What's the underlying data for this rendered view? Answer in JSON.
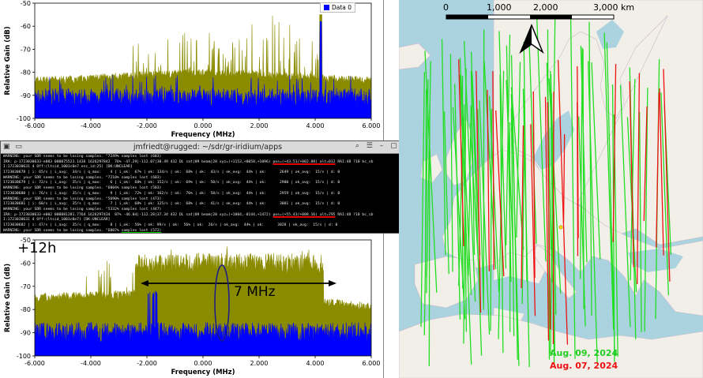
{
  "top_plot": {
    "chart_data": {
      "type": "line",
      "title": "",
      "xlabel": "Frequency (MHz)",
      "ylabel": "Relative Gain (dB)",
      "xlim": [
        -6,
        6
      ],
      "ylim": [
        -100,
        -50
      ],
      "x_ticks": [
        "-6.000",
        "-4.000",
        "-2.000",
        "0.000",
        "2.000",
        "4.000",
        "6.000"
      ],
      "y_ticks": [
        "-50",
        "-60",
        "-70",
        "-80",
        "-90",
        "-100"
      ],
      "legend": [
        "Data 0"
      ],
      "legend_position": "top-right",
      "series": [
        {
          "name": "Data 0",
          "color": "#0000ff",
          "approx_level_db": -92
        },
        {
          "color": "#8b8b00",
          "approx_level_db": -82
        }
      ],
      "grid": false
    }
  },
  "bottom_plot": {
    "chart_data": {
      "type": "line",
      "title": "",
      "xlabel": "Frequency (MHz)",
      "ylabel": "Relative Gain (dB)",
      "xlim": [
        -6,
        6
      ],
      "ylim": [
        -100,
        -50
      ],
      "x_ticks": [
        "-6.000",
        "-4.000",
        "-2.000",
        "0.000",
        "2.000",
        "4.000",
        "6.000"
      ],
      "y_ticks": [
        "-50",
        "-60",
        "-70",
        "-80",
        "-90",
        "-100"
      ],
      "series": [
        {
          "color": "#0000ff",
          "approx_level_db": -92
        },
        {
          "color": "#8b8b00",
          "approx_level_db": -60
        }
      ],
      "grid": false
    },
    "time_label": "+12h",
    "bandwidth_label": "7 MHz"
  },
  "terminal": {
    "title": "jmfriedt@rugged: ~/sdr/gr-iridium/apps",
    "lines": [
      {
        "t": "WARNING: your SDR seems to be losing samples. \"7249% samples lost (603)"
      },
      {
        "t": "IRA: p-1723030633-e003 000075523.1436 1626297842  76% -47.29|-112.07|30.49 432 DL sat|09 beam|20 xyz=(+1153,+0058,+1096) ",
        "r": "pos=(+43.51/+002.88) alt=012",
        "t2": " RAI:48 ?10 bc_sb"
      },
      {
        "t": "I:1723030631 4 Off:(ltsid_1001c0e7 esc_id:25) [DK:UNCLEAR]"
      },
      {
        "t": "1723030678 | i: 65/s | i_avg:  34/s | q_max:    4 | i_ok:  67% | ok: 134/s | ok:  68% | ok:  43/s | ok_avg:  44% | ok:      2649 | ok_avg:  15/s | d: 0"
      },
      {
        "t": "WARNING: your SDR seems to be losing samples. \"7210% samples lost (603)"
      },
      {
        "t": "1723030679 | i: 72/s | i_avg:  35/s | q_max:    6 | i_ok:  68% | ok: 152/s | ok:  69% | ok:  50/s | ok_avg:  44% | ok:      2900 | ok_avg:  15/s | d: 0"
      },
      {
        "t": "WARNING: your SDR seems to be losing samples. \"6004% samples lost (503)"
      },
      {
        "t": "1723030680 | i: 76/s | i_avg:  35/s | q_max:    9 | i_ok:  72% | ok: 162/s | ok:  76% | ok:  58/s | ok_avg:  44% | ok:      2959 | ok_avg:  15/s | d: 0"
      },
      {
        "t": "WARNING: your SDR seems to be losing samples. \"5690% samples lost (473)"
      },
      {
        "t": "1723030681 | i: 60/s | i_avg:  35/s | q_max:    7 | i_ok:  68% | ok: 125/s | ok:  68% | ok:  41/s | ok_avg:  44% | ok:      3001 | ok_avg:  15/s | d: 0"
      },
      {
        "t": "WARNING: your SDR seems to be losing samples. \"5332% samples lost (447)"
      },
      {
        "t": "IRA: p-1723030633-e002 000081281.7764 1626297434  87% -46.04|-112.28|37.34 432 DL sat|09 beam|20 xyz=(+1004,-0144,+1472) ",
        "r": "pos=(+55.43/+008.16) alt=795",
        "t2": " RAI:48 ?10 bc_sb"
      },
      {
        "t": "I:1723030631 4 Off:(ltsid_1001c0e7) [DK:UNCLEAR]"
      },
      {
        "t": "1723030682 | i: 47/s | i_avg:  35/s | q_max:    8 | i_ok:  56% | ok: 99/s | ok:  56% | ok:  26/s | ok_avg:  44% | ok:      3028 | ok_avg:  15/s | d: 0"
      },
      {
        "t": "WARNING: your SDR seems to be losing samples. \"6807% ",
        "g": "samples lost (572)"
      }
    ]
  },
  "map": {
    "scale_labels": [
      "0",
      "1,000",
      "2,000",
      "3,000 km"
    ],
    "captions": [
      {
        "text": "Aug. 09, 2024",
        "color": "#22cc22"
      },
      {
        "text": "Aug. 07, 2024",
        "color": "#ee1111"
      }
    ]
  }
}
